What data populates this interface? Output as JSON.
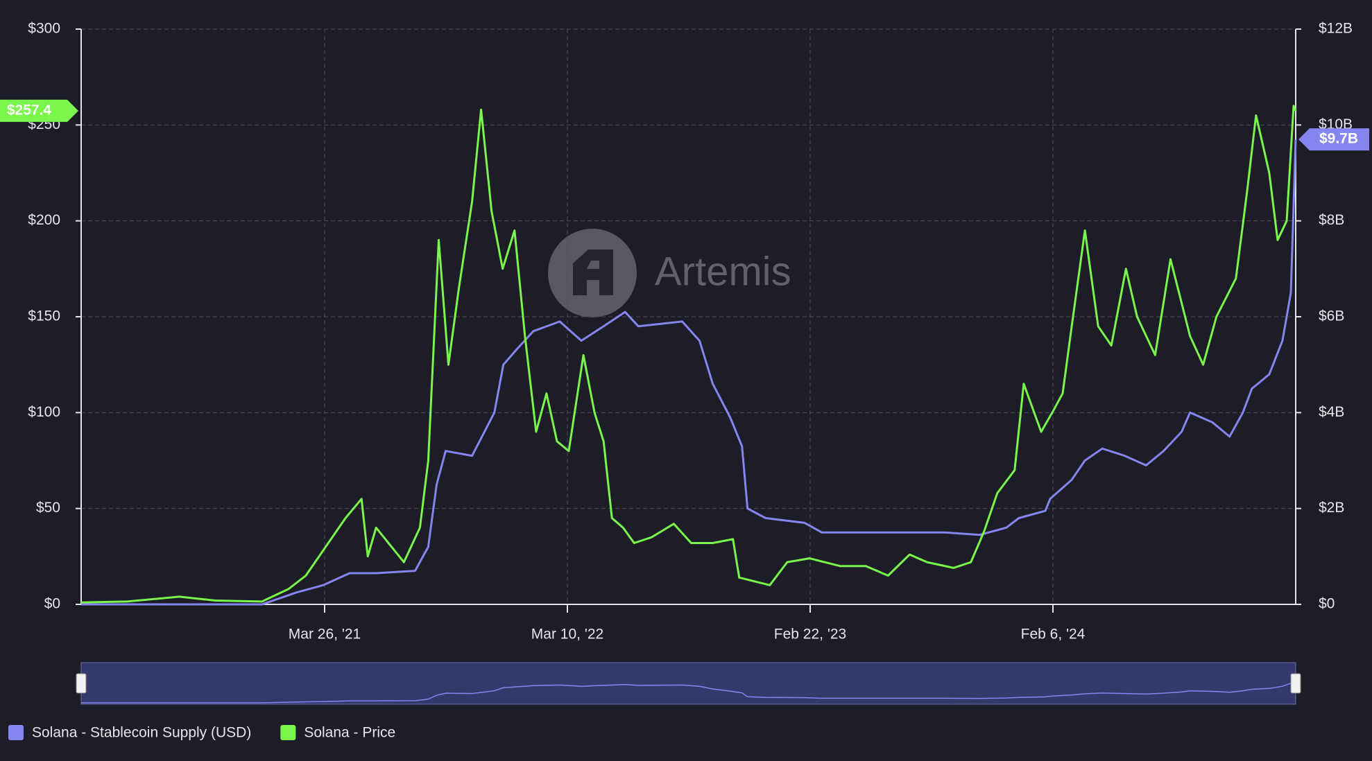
{
  "chart_data": {
    "type": "line",
    "watermark": "Artemis",
    "xlim": [
      "2020-04-10",
      "2025-01-20"
    ],
    "xticks": [
      {
        "value": "2021-03-26",
        "label": "Mar 26, '21"
      },
      {
        "value": "2022-03-10",
        "label": "Mar 10, '22"
      },
      {
        "value": "2023-02-22",
        "label": "Feb 22, '23"
      },
      {
        "value": "2024-02-06",
        "label": "Feb 6, '24"
      }
    ],
    "ylim": [
      0,
      300
    ],
    "yticks": [
      {
        "value": 0,
        "label": "$0"
      },
      {
        "value": 50,
        "label": "$50"
      },
      {
        "value": 100,
        "label": "$100"
      },
      {
        "value": 150,
        "label": "$150"
      },
      {
        "value": 200,
        "label": "$200"
      },
      {
        "value": 250,
        "label": "$250"
      },
      {
        "value": 300,
        "label": "$300"
      }
    ],
    "y2lim": [
      0,
      12
    ],
    "y2ticks": [
      {
        "value": 0,
        "label": "$0"
      },
      {
        "value": 2,
        "label": "$2B"
      },
      {
        "value": 4,
        "label": "$4B"
      },
      {
        "value": 6,
        "label": "$6B"
      },
      {
        "value": 8,
        "label": "$8B"
      },
      {
        "value": 10,
        "label": "$10B"
      },
      {
        "value": 12,
        "label": "$12B"
      }
    ],
    "grid": true,
    "series": [
      {
        "name": "Solana - Stablecoin Supply (USD)",
        "color": "#8585f0",
        "axis": "y2",
        "end_label": "$9.7B",
        "x": [
          "2020-04-10",
          "2020-12-26",
          "2021-02-14",
          "2021-03-24",
          "2021-05-01",
          "2021-06-08",
          "2021-08-03",
          "2021-08-22",
          "2021-09-03",
          "2021-09-16",
          "2021-10-24",
          "2021-11-25",
          "2021-12-08",
          "2021-12-26",
          "2022-01-20",
          "2022-02-27",
          "2022-03-30",
          "2022-05-01",
          "2022-06-01",
          "2022-06-20",
          "2022-08-22",
          "2022-09-16",
          "2022-10-05",
          "2022-10-30",
          "2022-11-16",
          "2022-11-24",
          "2022-12-20",
          "2023-02-14",
          "2023-03-11",
          "2023-05-26",
          "2023-09-04",
          "2023-10-24",
          "2023-12-01",
          "2023-12-19",
          "2024-01-26",
          "2024-02-02",
          "2024-03-04",
          "2024-03-23",
          "2024-04-17",
          "2024-05-19",
          "2024-06-19",
          "2024-07-14",
          "2024-08-09",
          "2024-08-21",
          "2024-09-22",
          "2024-10-17",
          "2024-11-05",
          "2024-11-18",
          "2024-12-13",
          "2025-01-01",
          "2025-01-13",
          "2025-01-20"
        ],
        "values": [
          0,
          0,
          0.25,
          0.4,
          0.65,
          0.65,
          0.7,
          1.2,
          2.5,
          3.2,
          3.1,
          4.0,
          5.0,
          5.3,
          5.7,
          5.9,
          5.5,
          5.8,
          6.1,
          5.8,
          5.9,
          5.5,
          4.6,
          3.9,
          3.3,
          2.0,
          1.8,
          1.7,
          1.5,
          1.5,
          1.5,
          1.45,
          1.6,
          1.8,
          1.95,
          2.2,
          2.6,
          3.0,
          3.25,
          3.1,
          2.9,
          3.2,
          3.6,
          4.0,
          3.8,
          3.5,
          4.0,
          4.5,
          4.8,
          5.5,
          6.5,
          9.7
        ]
      },
      {
        "name": "Solana - Price",
        "color": "#7af54c",
        "end_label": "$257.4",
        "x": [
          "2020-04-10",
          "2020-06-15",
          "2020-08-29",
          "2020-10-20",
          "2020-12-26",
          "2021-02-02",
          "2021-02-27",
          "2021-04-25",
          "2021-05-18",
          "2021-05-27",
          "2021-06-08",
          "2021-07-18",
          "2021-08-10",
          "2021-08-22",
          "2021-09-06",
          "2021-09-20",
          "2021-10-05",
          "2021-10-24",
          "2021-11-06",
          "2021-11-21",
          "2021-12-07",
          "2021-12-24",
          "2022-01-08",
          "2022-01-24",
          "2022-02-08",
          "2022-02-23",
          "2022-03-12",
          "2022-04-02",
          "2022-04-18",
          "2022-05-01",
          "2022-05-13",
          "2022-05-29",
          "2022-06-14",
          "2022-07-09",
          "2022-08-10",
          "2022-09-04",
          "2022-10-05",
          "2022-11-03",
          "2022-11-12",
          "2022-12-26",
          "2023-01-20",
          "2023-02-21",
          "2023-04-06",
          "2023-05-13",
          "2023-06-14",
          "2023-07-15",
          "2023-08-09",
          "2023-09-16",
          "2023-10-11",
          "2023-10-30",
          "2023-11-18",
          "2023-12-13",
          "2023-12-26",
          "2024-01-20",
          "2024-02-05",
          "2024-02-20",
          "2024-03-04",
          "2024-03-23",
          "2024-04-11",
          "2024-04-30",
          "2024-05-21",
          "2024-06-06",
          "2024-07-02",
          "2024-07-24",
          "2024-08-21",
          "2024-09-09",
          "2024-09-28",
          "2024-10-26",
          "2024-11-11",
          "2024-11-24",
          "2024-12-13",
          "2024-12-25",
          "2025-01-07",
          "2025-01-17",
          "2025-01-20"
        ],
        "values": [
          1,
          1.5,
          4,
          2,
          1.5,
          8,
          15,
          45,
          55,
          25,
          40,
          22,
          40,
          75,
          190,
          125,
          165,
          210,
          258,
          205,
          175,
          195,
          140,
          90,
          110,
          85,
          80,
          130,
          100,
          85,
          45,
          40,
          32,
          35,
          42,
          32,
          32,
          34,
          14,
          10,
          22,
          24,
          20,
          20,
          15,
          26,
          22,
          19,
          22,
          38,
          58,
          70,
          115,
          90,
          100,
          110,
          145,
          195,
          145,
          135,
          175,
          150,
          130,
          180,
          140,
          125,
          150,
          170,
          215,
          255,
          225,
          190,
          200,
          260,
          257.4
        ]
      }
    ]
  }
}
